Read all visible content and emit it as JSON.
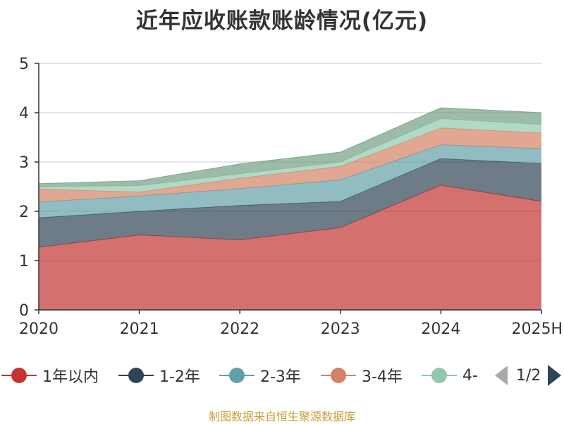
{
  "title": "近年应收账款账龄情况(亿元)",
  "source": "制图数据来自恒生聚源数据库",
  "legend": {
    "page": "1/2",
    "items": [
      {
        "label": "1年以内",
        "color": "#c23531"
      },
      {
        "label": "1-2年",
        "color": "#2f4554"
      },
      {
        "label": "2-3年",
        "color": "#61a0a8"
      },
      {
        "label": "3-4年",
        "color": "#d48265"
      },
      {
        "label": "4-",
        "color": "#91c7ae"
      }
    ]
  },
  "chart_data": {
    "type": "area",
    "stacked": true,
    "title": "近年应收账款账龄情况(亿元)",
    "categories": [
      "2020",
      "2021",
      "2022",
      "2023",
      "2024",
      "2025H"
    ],
    "ylim": [
      0,
      5
    ],
    "yticks": [
      0,
      1,
      2,
      3,
      4,
      5
    ],
    "grid": true,
    "legend_position": "bottom",
    "series": [
      {
        "name": "1年以内",
        "color": "#c23531",
        "values": [
          1.27,
          1.52,
          1.42,
          1.67,
          2.53,
          2.2
        ]
      },
      {
        "name": "1-2年",
        "color": "#2f4554",
        "values": [
          0.6,
          0.48,
          0.7,
          0.53,
          0.54,
          0.77
        ]
      },
      {
        "name": "2-3年",
        "color": "#61a0a8",
        "values": [
          0.32,
          0.31,
          0.34,
          0.44,
          0.28,
          0.3
        ]
      },
      {
        "name": "3-4年",
        "color": "#d48265",
        "values": [
          0.26,
          0.08,
          0.21,
          0.27,
          0.34,
          0.32
        ]
      },
      {
        "name": "4-",
        "color": "#91c7ae",
        "values": [
          0.05,
          0.13,
          0.09,
          0.09,
          0.19,
          0.17
        ]
      },
      {
        "color": "#749f83",
        "values": [
          0.06,
          0.1,
          0.2,
          0.2,
          0.22,
          0.24
        ]
      }
    ]
  }
}
